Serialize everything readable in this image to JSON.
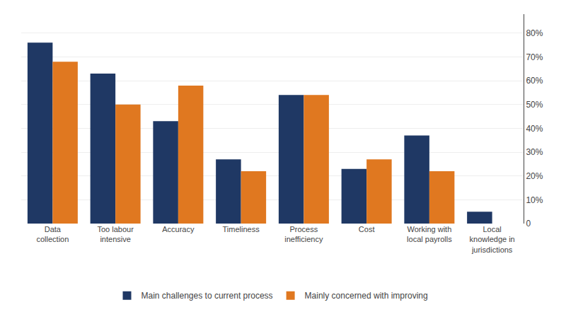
{
  "chart_data": {
    "type": "bar",
    "categories": [
      "Data\ncollection",
      "Too labour\nintensive",
      "Accuracy",
      "Timeliness",
      "Process\ninefficiency",
      "Cost",
      "Working with\nlocal payrolls",
      "Local\nknowledge in\njurisdictions"
    ],
    "series": [
      {
        "name": "Main challenges to current process",
        "color": "#1F3864",
        "values": [
          0.76,
          0.63,
          0.43,
          0.27,
          0.54,
          0.23,
          0.37,
          0.05
        ]
      },
      {
        "name": "Mainly concerned with improving",
        "color": "#E07820",
        "values": [
          0.68,
          0.5,
          0.58,
          0.22,
          0.54,
          0.27,
          0.22,
          0.0
        ]
      }
    ],
    "ylim": [
      0,
      0.88
    ],
    "yticks": [
      0,
      {
        "value": 0.1,
        "label": "10%"
      },
      {
        "value": 0.2,
        "label": "20%"
      },
      {
        "value": 0.3,
        "label": "30%"
      },
      {
        "value": 0.4,
        "label": "40%"
      },
      {
        "value": 0.5,
        "label": "50%"
      },
      {
        "value": 0.6,
        "label": "60%"
      },
      {
        "value": 0.7,
        "label": "70%"
      },
      {
        "value": 0.8,
        "label": "80%"
      }
    ],
    "grid": true,
    "legend": "bottom"
  }
}
